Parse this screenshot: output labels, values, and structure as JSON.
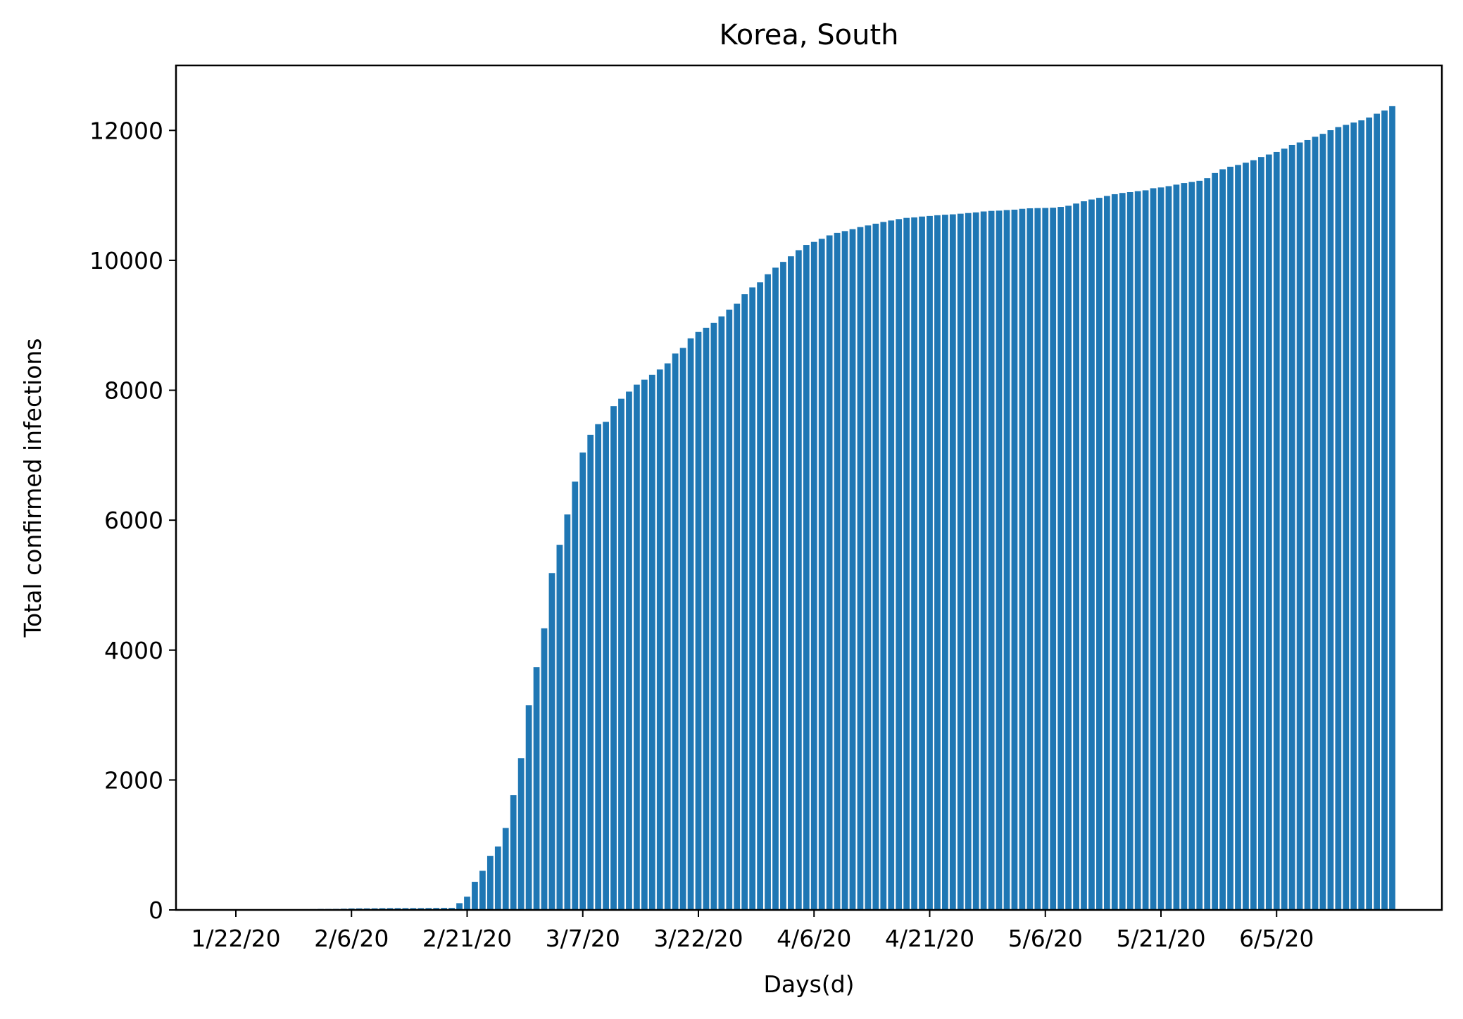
{
  "chart_data": {
    "type": "bar",
    "title": "Korea, South",
    "xlabel": "Days(d)",
    "ylabel": "Total confirmed infections",
    "ylim": [
      0,
      13000
    ],
    "yticks": [
      0,
      2000,
      4000,
      6000,
      8000,
      10000,
      12000
    ],
    "ytick_labels": [
      "0",
      "2000",
      "4000",
      "6000",
      "8000",
      "10000",
      "12000"
    ],
    "start_date": "1/22/20",
    "xticks": [
      {
        "day": 0,
        "label": "1/22/20"
      },
      {
        "day": 15,
        "label": "2/6/20"
      },
      {
        "day": 30,
        "label": "2/21/20"
      },
      {
        "day": 45,
        "label": "3/7/20"
      },
      {
        "day": 60,
        "label": "3/22/20"
      },
      {
        "day": 75,
        "label": "4/6/20"
      },
      {
        "day": 90,
        "label": "4/21/20"
      },
      {
        "day": 105,
        "label": "5/6/20"
      },
      {
        "day": 120,
        "label": "5/21/20"
      },
      {
        "day": 135,
        "label": "6/5/20"
      }
    ],
    "bar_color": "#1f77b4",
    "grid": false,
    "legend": "none",
    "series": [
      {
        "values": [
          1,
          1,
          2,
          2,
          3,
          4,
          4,
          4,
          4,
          11,
          12,
          15,
          15,
          16,
          19,
          23,
          24,
          24,
          25,
          27,
          28,
          28,
          28,
          28,
          28,
          29,
          30,
          31,
          31,
          104,
          204,
          433,
          602,
          833,
          977,
          1261,
          1766,
          2337,
          3150,
          3736,
          4335,
          5186,
          5621,
          6088,
          6593,
          7041,
          7314,
          7478,
          7513,
          7755,
          7869,
          7979,
          8086,
          8162,
          8236,
          8320,
          8413,
          8565,
          8652,
          8799,
          8897,
          8961,
          9037,
          9137,
          9241,
          9332,
          9478,
          9583,
          9661,
          9786,
          9887,
          9976,
          10062,
          10156,
          10237,
          10284,
          10331,
          10384,
          10423,
          10450,
          10480,
          10512,
          10537,
          10564,
          10591,
          10613,
          10635,
          10653,
          10661,
          10674,
          10683,
          10694,
          10702,
          10708,
          10718,
          10728,
          10738,
          10752,
          10761,
          10765,
          10774,
          10780,
          10793,
          10801,
          10804,
          10806,
          10810,
          10822,
          10840,
          10874,
          10909,
          10936,
          10962,
          10991,
          11018,
          11037,
          11050,
          11065,
          11078,
          11110,
          11122,
          11142,
          11165,
          11190,
          11206,
          11225,
          11265,
          11344,
          11402,
          11441,
          11468,
          11503,
          11541,
          11590,
          11629,
          11668,
          11719,
          11776,
          11814,
          11852,
          11902,
          11947,
          12003,
          12051,
          12085,
          12121,
          12155,
          12198,
          12257,
          12306,
          12373
        ]
      }
    ]
  }
}
